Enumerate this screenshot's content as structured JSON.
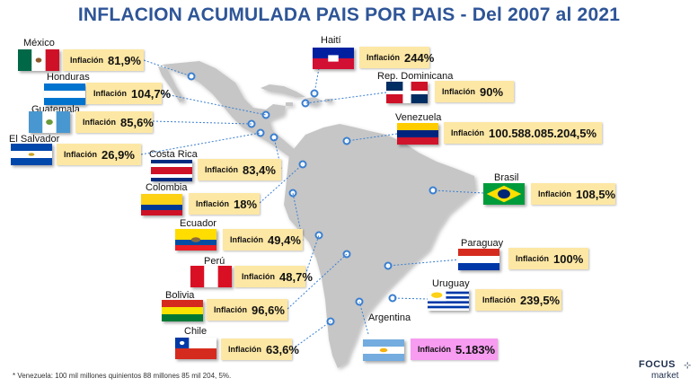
{
  "title": "INFLACION ACUMULADA PAIS POR PAIS - Del 2007 al 2021",
  "inflation_label": "Inflación",
  "countries": [
    {
      "name": "México",
      "inflation": "81,9%"
    },
    {
      "name": "Honduras",
      "inflation": "104,7%"
    },
    {
      "name": "Guatemala",
      "inflation": "85,6%"
    },
    {
      "name": "El Salvador",
      "inflation": "26,9%"
    },
    {
      "name": "Costa Rica",
      "inflation": "83,4%"
    },
    {
      "name": "Colombia",
      "inflation": "18%"
    },
    {
      "name": "Ecuador",
      "inflation": "49,4%"
    },
    {
      "name": "Perú",
      "inflation": "48,7%"
    },
    {
      "name": "Bolivia",
      "inflation": "96,6%"
    },
    {
      "name": "Chile",
      "inflation": "63,6%"
    },
    {
      "name": "Haití",
      "inflation": "244%"
    },
    {
      "name": "Rep. Dominicana",
      "inflation": "90%"
    },
    {
      "name": "Venezuela",
      "inflation": "100.588.085.204,5%"
    },
    {
      "name": "Brasil",
      "inflation": "108,5%"
    },
    {
      "name": "Paraguay",
      "inflation": "100%"
    },
    {
      "name": "Uruguay",
      "inflation": "239,5%"
    },
    {
      "name": "Argentina",
      "inflation": "5.183%"
    }
  ],
  "footnote": "* Venezuela: 100 mil millones quinientos 88 millones 85 mil 204, 5%.",
  "logo": {
    "line1": "FOCUS",
    "line2": "market"
  },
  "colors": {
    "title": "#2e5597",
    "box": "#fde7a4",
    "highlight_box": "#f79cf1",
    "land": "#c4c4c4",
    "marker": "#3a7fd0"
  }
}
